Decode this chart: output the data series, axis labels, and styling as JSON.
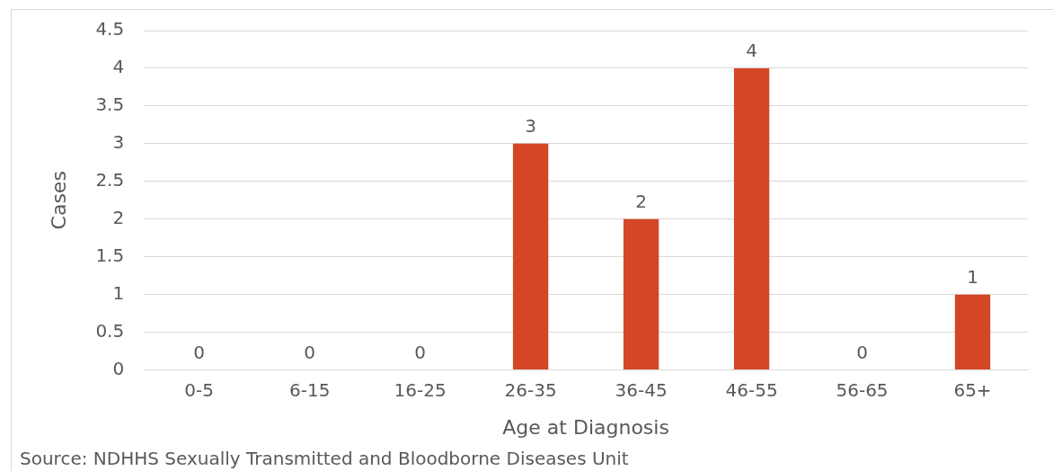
{
  "chart_data": {
    "type": "bar",
    "xlabel": "Age at Diagnosis",
    "ylabel": "Cases",
    "categories": [
      "0-5",
      "6-15",
      "16-25",
      "26-35",
      "36-45",
      "46-55",
      "56-65",
      "65+"
    ],
    "values": [
      0,
      0,
      0,
      3,
      2,
      4,
      0,
      1
    ],
    "color": "#d34727",
    "ylim": [
      0,
      4.5
    ],
    "yticks": [
      0,
      0.5,
      1,
      1.5,
      2,
      2.5,
      3,
      3.5,
      4,
      4.5
    ],
    "grid": "y",
    "data_labels": true,
    "annotations": [
      "Source: NDHHS Sexually Transmitted and Bloodborne Diseases Unit"
    ]
  }
}
